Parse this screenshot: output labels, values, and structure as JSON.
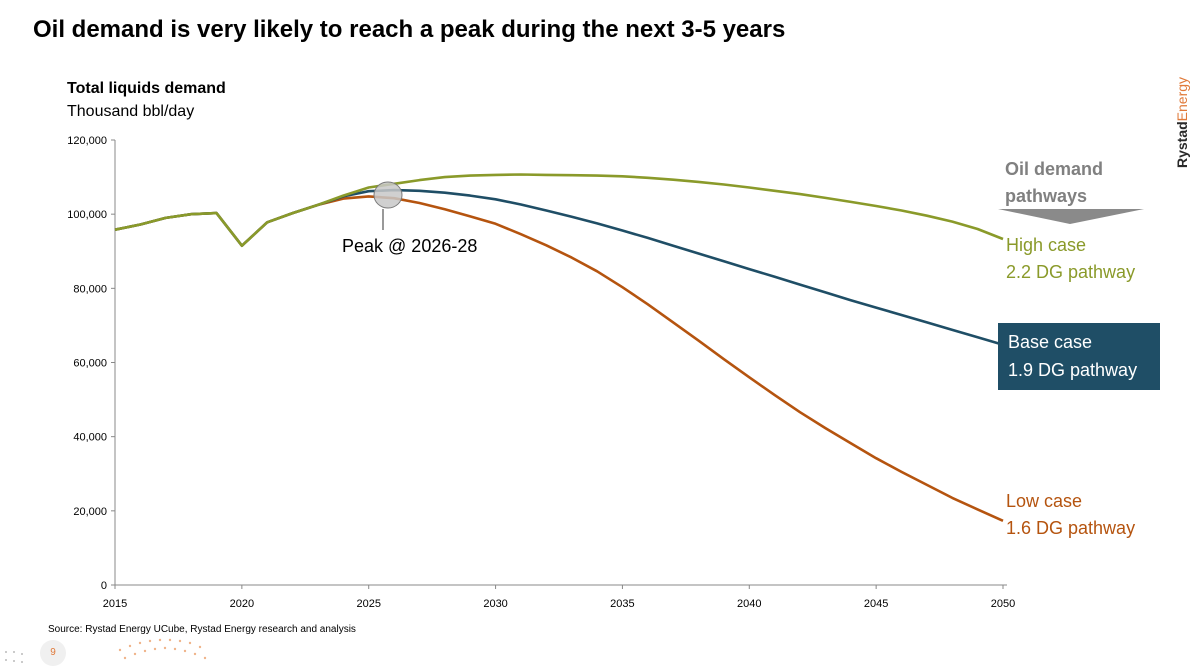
{
  "title": "Oil demand is very likely to reach a peak during the next 3-5 years",
  "brand": "RystadEnergy",
  "source": "Source: Rystad Energy UCube, Rystad Energy research and analysis",
  "page_number": "9",
  "chart_data": {
    "type": "line",
    "ylabel": "Total liquids demand",
    "yunit": "Thousand bbl/day",
    "ylim": [
      0,
      120000
    ],
    "xlim": [
      2015,
      2050
    ],
    "y_ticks": [
      0,
      20000,
      40000,
      60000,
      80000,
      100000,
      120000
    ],
    "y_tick_labels": [
      "0",
      "20,000",
      "40,000",
      "60,000",
      "80,000",
      "100,000",
      "120,000"
    ],
    "x_ticks": [
      2015,
      2020,
      2025,
      2030,
      2035,
      2040,
      2045,
      2050
    ],
    "x_tick_labels": [
      "2015",
      "2020",
      "2025",
      "2030",
      "2035",
      "2040",
      "2045",
      "2050"
    ],
    "legend_title": "Oil demand pathways",
    "annotation": "Peak @ 2026-28",
    "series": [
      {
        "name": "High case",
        "sublabel": "2.2 DG pathway",
        "color": "#8a9a2a",
        "x": [
          2015,
          2016,
          2017,
          2018,
          2019,
          2020,
          2021,
          2022,
          2023,
          2024,
          2025,
          2026,
          2027,
          2028,
          2029,
          2030,
          2031,
          2032,
          2033,
          2034,
          2035,
          2036,
          2037,
          2038,
          2039,
          2040,
          2041,
          2042,
          2043,
          2044,
          2045,
          2046,
          2047,
          2048,
          2049,
          2050
        ],
        "values": [
          95800,
          97200,
          99000,
          100000,
          100300,
          91500,
          97800,
          100300,
          102500,
          105000,
          107200,
          108200,
          109200,
          110000,
          110400,
          110600,
          110700,
          110600,
          110500,
          110400,
          110200,
          109800,
          109300,
          108700,
          108000,
          107200,
          106300,
          105400,
          104400,
          103300,
          102200,
          101000,
          99600,
          98000,
          96000,
          93300
        ]
      },
      {
        "name": "Base case",
        "sublabel": "1.9 DG pathway",
        "color": "#1f4e66",
        "x": [
          2015,
          2016,
          2017,
          2018,
          2019,
          2020,
          2021,
          2022,
          2023,
          2024,
          2025,
          2026,
          2027,
          2028,
          2029,
          2030,
          2031,
          2032,
          2033,
          2034,
          2035,
          2036,
          2037,
          2038,
          2039,
          2040,
          2041,
          2042,
          2043,
          2044,
          2045,
          2046,
          2047,
          2048,
          2049,
          2050
        ],
        "values": [
          95800,
          97200,
          99000,
          100000,
          100300,
          91500,
          97800,
          100300,
          102500,
          104800,
          106200,
          106500,
          106300,
          105800,
          105000,
          104000,
          102600,
          101000,
          99300,
          97500,
          95600,
          93600,
          91500,
          89400,
          87300,
          85200,
          83100,
          81000,
          78900,
          76800,
          74800,
          72800,
          70800,
          68800,
          66800,
          64800
        ]
      },
      {
        "name": "Low case",
        "sublabel": "1.6 DG pathway",
        "color": "#b5540f",
        "x": [
          2015,
          2016,
          2017,
          2018,
          2019,
          2020,
          2021,
          2022,
          2023,
          2024,
          2025,
          2026,
          2027,
          2028,
          2029,
          2030,
          2031,
          2032,
          2033,
          2034,
          2035,
          2036,
          2037,
          2038,
          2039,
          2040,
          2041,
          2042,
          2043,
          2044,
          2045,
          2046,
          2047,
          2048,
          2049,
          2050
        ],
        "values": [
          95800,
          97200,
          99000,
          100000,
          100300,
          91500,
          97800,
          100300,
          102500,
          104200,
          104800,
          104300,
          103000,
          101300,
          99400,
          97400,
          94600,
          91600,
          88300,
          84600,
          80300,
          75700,
          70800,
          65900,
          60900,
          56000,
          51200,
          46600,
          42300,
          38200,
          34200,
          30500,
          27000,
          23500,
          20400,
          17300
        ]
      }
    ],
    "grid": false,
    "legend_position": "right"
  }
}
